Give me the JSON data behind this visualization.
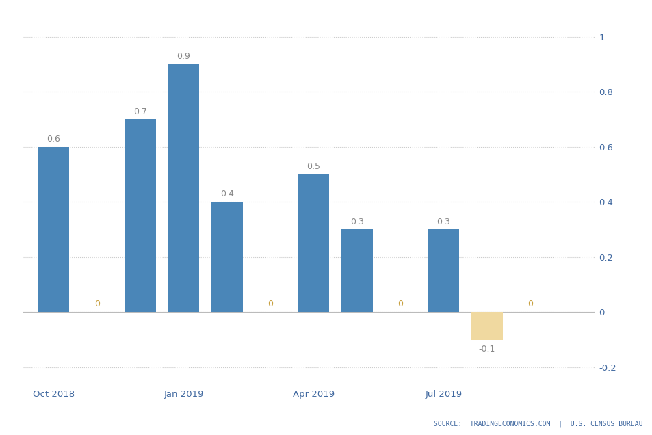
{
  "bar_data": [
    {
      "x": 0,
      "value": 0.6,
      "color": "#4a86b8",
      "label": "0.6",
      "label_color": "#888888"
    },
    {
      "x": 1,
      "value": 0.0,
      "color": "#4a86b8",
      "label": "0",
      "label_color": "#c8a040"
    },
    {
      "x": 2,
      "value": 0.7,
      "color": "#4a86b8",
      "label": "0.7",
      "label_color": "#888888"
    },
    {
      "x": 3,
      "value": 0.9,
      "color": "#4a86b8",
      "label": "0.9",
      "label_color": "#888888"
    },
    {
      "x": 4,
      "value": 0.4,
      "color": "#4a86b8",
      "label": "0.4",
      "label_color": "#888888"
    },
    {
      "x": 5,
      "value": 0.0,
      "color": "#4a86b8",
      "label": "0",
      "label_color": "#c8a040"
    },
    {
      "x": 6,
      "value": 0.5,
      "color": "#4a86b8",
      "label": "0.5",
      "label_color": "#888888"
    },
    {
      "x": 7,
      "value": 0.3,
      "color": "#4a86b8",
      "label": "0.3",
      "label_color": "#888888"
    },
    {
      "x": 8,
      "value": 0.0,
      "color": "#4a86b8",
      "label": "0",
      "label_color": "#c8a040"
    },
    {
      "x": 9,
      "value": 0.3,
      "color": "#4a86b8",
      "label": "0.3",
      "label_color": "#888888"
    },
    {
      "x": 10,
      "value": -0.1,
      "color": "#f0d9a0",
      "label": "-0.1",
      "label_color": "#888888"
    },
    {
      "x": 11,
      "value": 0.0,
      "color": "#4a86b8",
      "label": "0",
      "label_color": "#c8a040"
    }
  ],
  "xtick_positions": [
    0,
    3,
    6,
    9
  ],
  "xtick_labels": [
    "Oct 2018",
    "Jan 2019",
    "Apr 2019",
    "Jul 2019"
  ],
  "ytick_positions": [
    -0.2,
    0.0,
    0.2,
    0.4,
    0.6,
    0.8,
    1.0
  ],
  "ytick_labels": [
    "-0.2",
    "0",
    "0.2",
    "0.4",
    "0.6",
    "0.8",
    "1"
  ],
  "ylim": [
    -0.27,
    1.08
  ],
  "xlim": [
    -0.7,
    12.5
  ],
  "background_color": "#ffffff",
  "grid_color": "#cccccc",
  "source_text": "SOURCE:  TRADINGECONOMICS.COM  |  U.S. CENSUS BUREAU",
  "source_color": "#4169a0",
  "bar_label_fontsize": 9,
  "tick_label_color": "#4169a0",
  "tick_label_fontsize": 9.5,
  "bar_width": 0.72
}
